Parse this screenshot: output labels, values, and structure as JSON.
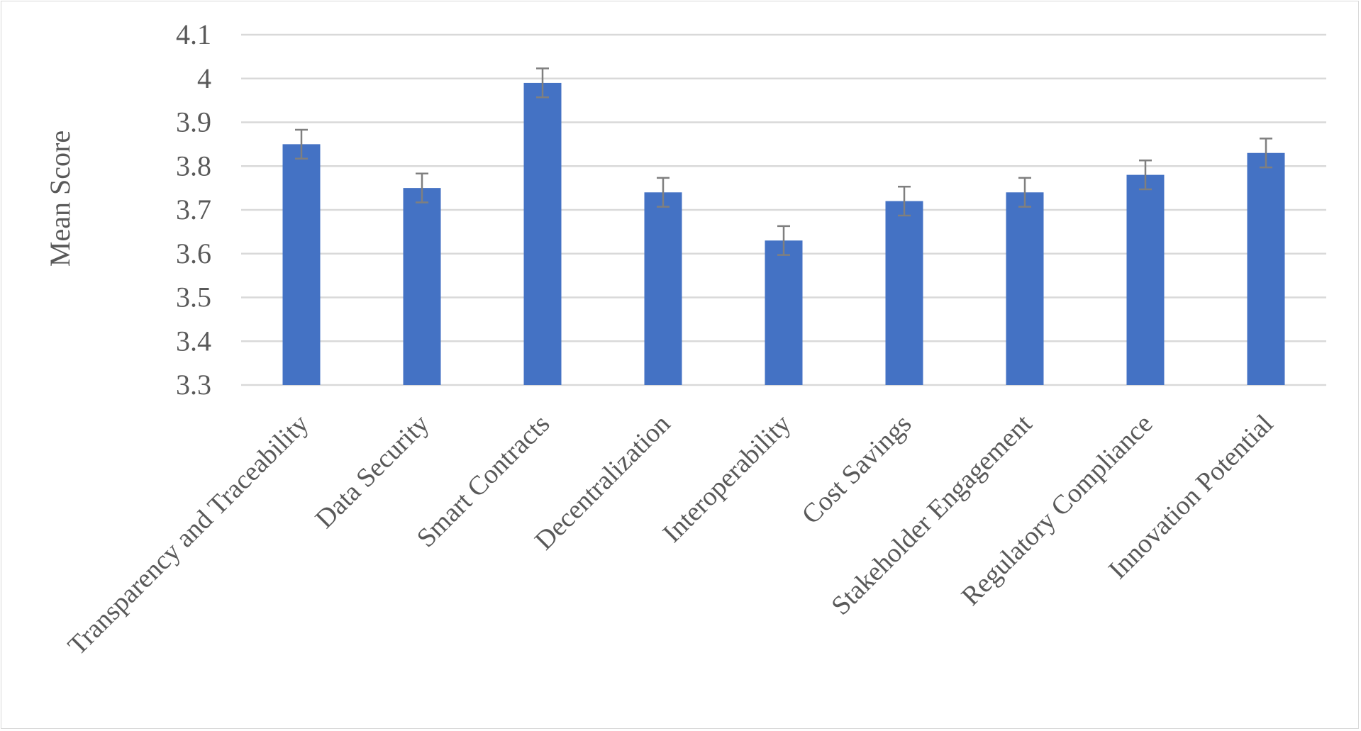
{
  "chart_data": {
    "type": "bar",
    "ylabel": "Mean Score",
    "xlabel": "",
    "ylim": [
      3.3,
      4.1
    ],
    "ytick_step": 0.1,
    "yticks": [
      "3.3",
      "3.4",
      "3.5",
      "3.6",
      "3.7",
      "3.8",
      "3.9",
      "4",
      "4.1"
    ],
    "grid": true,
    "categories": [
      "Transparency and Traceability",
      "Data Security",
      "Smart Contracts",
      "Decentralization",
      "Interoperability",
      "Cost Savings",
      "Stakeholder Engagement",
      "Regulatory Compliance",
      "Innovation Potential"
    ],
    "values": [
      3.85,
      3.75,
      3.99,
      3.74,
      3.63,
      3.72,
      3.74,
      3.78,
      3.83
    ],
    "error": [
      0.033,
      0.033,
      0.033,
      0.033,
      0.033,
      0.033,
      0.033,
      0.033,
      0.033
    ],
    "colors": {
      "bar": "#4472c4",
      "error": "#7f7f7f",
      "grid": "#d9d9d9",
      "text": "#595959"
    }
  }
}
